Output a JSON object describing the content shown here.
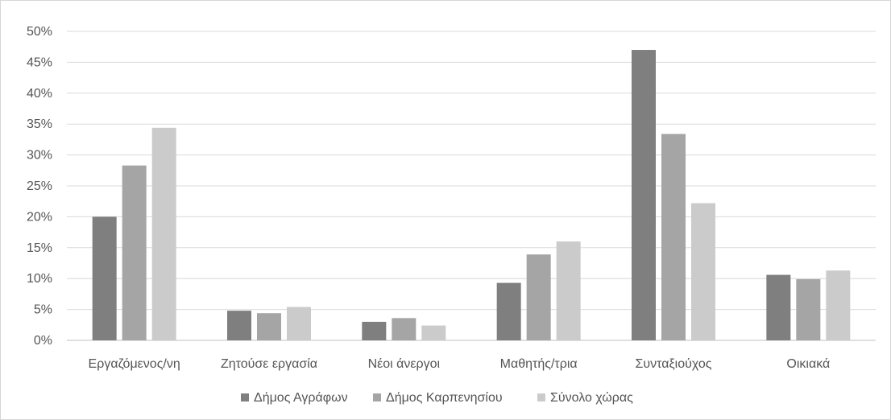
{
  "chart_data": {
    "type": "bar",
    "title": "",
    "xlabel": "",
    "ylabel": "",
    "categories": [
      "Εργαζόμενος/νη",
      "Ζητούσε εργασία",
      "Νέοι άνεργοι",
      "Μαθητής/τρια",
      "Συνταξιούχος",
      "Οικιακά"
    ],
    "series": [
      {
        "name": "Δήμος Αγράφων",
        "color": "#7f7f7f",
        "values": [
          20.0,
          4.8,
          3.0,
          9.3,
          47.0,
          10.6
        ]
      },
      {
        "name": "Δήμος Καρπενησίου",
        "color": "#a5a5a5",
        "values": [
          28.3,
          4.4,
          3.6,
          13.9,
          33.4,
          9.9
        ]
      },
      {
        "name": "Σύνολο χώρας",
        "color": "#cbcbcb",
        "values": [
          34.4,
          5.4,
          2.4,
          16.0,
          22.2,
          11.3
        ]
      }
    ],
    "ylim": [
      0,
      50
    ],
    "y_ticks": [
      "0%",
      "5%",
      "10%",
      "15%",
      "20%",
      "25%",
      "30%",
      "35%",
      "40%",
      "45%",
      "50%"
    ],
    "grid": true,
    "legend_position": "bottom"
  }
}
